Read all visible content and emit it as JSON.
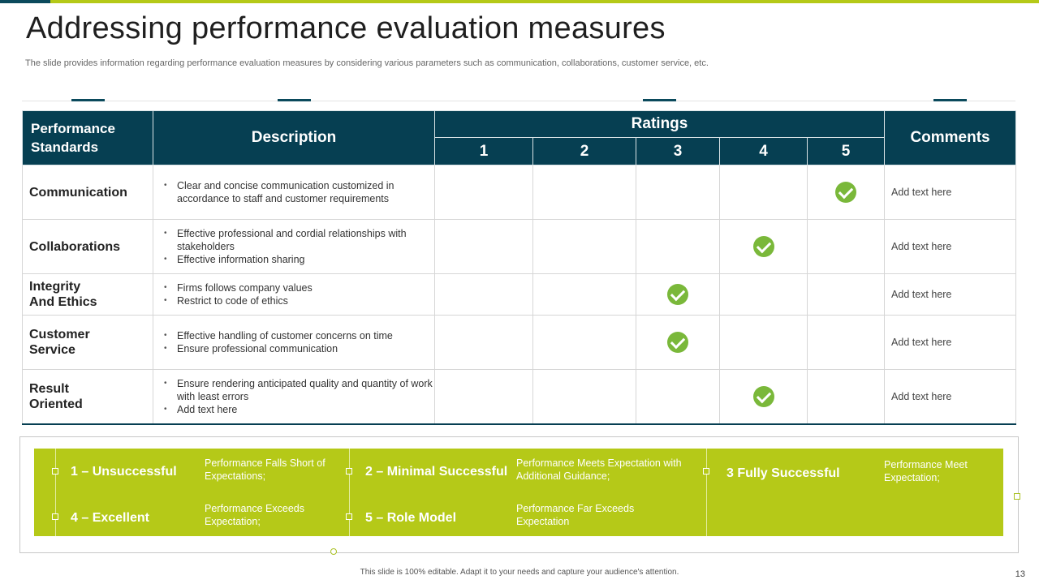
{
  "slide": {
    "title": "Addressing performance evaluation measures",
    "subtitle": "The slide provides information regarding performance evaluation measures by considering various parameters such as communication, collaborations, customer service, etc.",
    "footer": "This slide is 100% editable.  Adapt it to your needs and capture your audience's attention.",
    "page_number": "13"
  },
  "colors": {
    "accent_green": "#b5c918",
    "header_teal": "#063f52",
    "check_green": "#7ab83a"
  },
  "table": {
    "headers": {
      "standards": "Performance Standards",
      "description": "Description",
      "ratings": "Ratings",
      "comments": "Comments",
      "rating_numbers": [
        "1",
        "2",
        "3",
        "4",
        "5"
      ]
    },
    "rows": [
      {
        "standard": "Communication",
        "bullets": [
          "Clear and concise communication customized in accordance to staff and customer requirements"
        ],
        "rating": 5,
        "comment": "Add text here"
      },
      {
        "standard": "Collaborations",
        "bullets": [
          "Effective professional  and cordial relationships with stakeholders",
          "Effective information  sharing"
        ],
        "rating": 4,
        "comment": "Add text here"
      },
      {
        "standard": "Integrity And Ethics",
        "bullets": [
          "Firms follows company values",
          "Restrict to code of ethics"
        ],
        "rating": 3,
        "comment": "Add text here"
      },
      {
        "standard": "Customer Service",
        "bullets": [
          "Effective handling of customer concerns on time",
          "Ensure professional communication"
        ],
        "rating": 3,
        "comment": "Add text here"
      },
      {
        "standard": "Result Oriented",
        "bullets": [
          "Ensure rendering anticipated quality and quantity of work with least errors",
          "Add text here"
        ],
        "rating": 4,
        "comment": "Add text here"
      }
    ],
    "check_icon": "check-circle-icon"
  },
  "legend": [
    {
      "label": "1 – Unsuccessful",
      "desc": "Performance  Falls Short of Expectations;"
    },
    {
      "label": "2 – Minimal Successful",
      "desc": "Performance  Meets Expectation with Additional Guidance;"
    },
    {
      "label": "3 Fully Successful",
      "desc": "Performance Meet Expectation;"
    },
    {
      "label": "4 – Excellent",
      "desc": "Performance Exceeds Expectation;"
    },
    {
      "label": "5 – Role Model",
      "desc": "Performance  Far Exceeds Expectation"
    }
  ]
}
